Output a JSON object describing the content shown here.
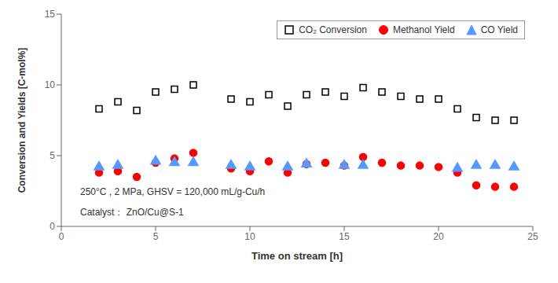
{
  "chart_data": {
    "type": "scatter",
    "xlabel": "Time on stream [h]",
    "ylabel": "Conversion and Yields [C-mol%]",
    "xlim": [
      0,
      25
    ],
    "ylim": [
      0,
      15
    ],
    "xticks": [
      0,
      5,
      10,
      15,
      20,
      25
    ],
    "yticks": [
      0,
      5,
      10,
      15
    ],
    "grid": false,
    "legend": "upper right",
    "annotations": [
      "250°C , 2 MPa, GHSV = 120,000 mL/g-Cu/h",
      "Catalyst： ZnO/Cu@S-1"
    ],
    "series": [
      {
        "name": "CO₂ Conversion",
        "color": "black",
        "marker": "open_square",
        "x": [
          2,
          3,
          4,
          5,
          6,
          7,
          9,
          10,
          11,
          12,
          13,
          14,
          15,
          16,
          17,
          18,
          19,
          20,
          21,
          22,
          23,
          24
        ],
        "values": [
          8.3,
          8.8,
          8.2,
          9.5,
          9.7,
          10.0,
          9.0,
          8.8,
          9.3,
          8.5,
          9.3,
          9.5,
          9.2,
          9.8,
          9.5,
          9.2,
          9.0,
          9.0,
          8.3,
          7.7,
          7.5,
          7.5
        ]
      },
      {
        "name": "Methanol Yield",
        "color": "red",
        "marker": "circle",
        "x": [
          2,
          3,
          4,
          5,
          6,
          7,
          9,
          10,
          11,
          12,
          13,
          14,
          15,
          16,
          17,
          18,
          19,
          20,
          21,
          22,
          23,
          24
        ],
        "values": [
          3.8,
          3.9,
          3.5,
          4.5,
          4.8,
          5.2,
          4.1,
          3.9,
          4.6,
          3.8,
          4.4,
          4.5,
          4.3,
          4.9,
          4.5,
          4.3,
          4.3,
          4.2,
          3.8,
          2.9,
          2.8,
          2.8
        ]
      },
      {
        "name": "CO Yield",
        "color": "#5599ff",
        "marker": "triangle",
        "x": [
          2,
          3,
          5,
          6,
          7,
          9,
          10,
          12,
          13,
          15,
          16,
          21,
          22,
          23,
          24
        ],
        "values": [
          4.2,
          4.3,
          4.6,
          4.5,
          4.5,
          4.3,
          4.2,
          4.2,
          4.4,
          4.3,
          4.3,
          4.1,
          4.3,
          4.3,
          4.2
        ]
      }
    ]
  }
}
